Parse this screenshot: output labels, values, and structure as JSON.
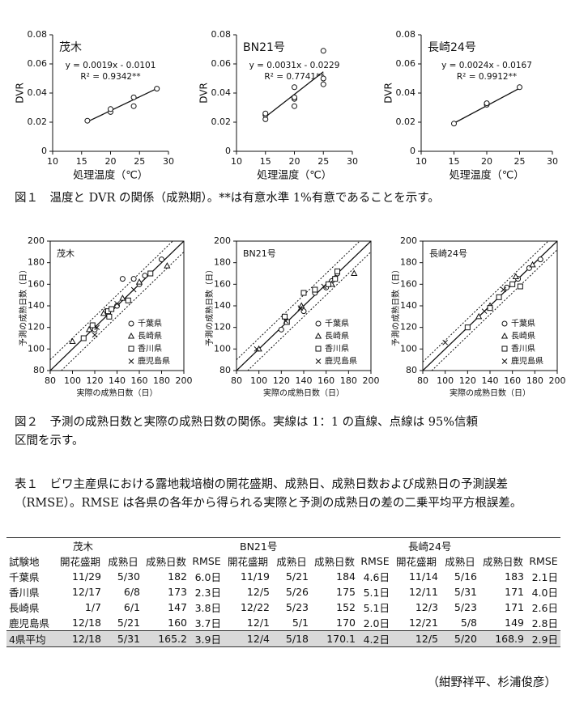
{
  "figure1": {
    "caption": "図１　温度と DVR の関係（成熟期）。**は有意水準 1%有意であることを示す。",
    "charts": [
      {
        "type": "scatter",
        "title": "茂木",
        "xlabel": "処理温度（℃）",
        "ylabel": "DVR",
        "xlim": [
          10,
          30
        ],
        "ylim": [
          0,
          0.08
        ],
        "xticks": [
          10,
          15,
          20,
          25,
          30
        ],
        "yticks": [
          0,
          0.02,
          0.04,
          0.06,
          0.08
        ],
        "series": [
          {
            "marker": "circle",
            "x": [
              16,
              20,
              20,
              24,
              24,
              28
            ],
            "values": [
              0.021,
              0.027,
              0.029,
              0.031,
              0.037,
              0.043
            ]
          }
        ],
        "ref_lines": [
          {
            "x": [
              16,
              28
            ],
            "values": [
              0.0203,
              0.0431
            ],
            "dash": false
          }
        ],
        "annotations": [
          "y = 0.0019x - 0.0101",
          "R² = 0.9342**"
        ]
      },
      {
        "type": "scatter",
        "title": "BN21号",
        "xlabel": "処理温度（℃）",
        "ylabel": "DVR",
        "xlim": [
          10,
          30
        ],
        "ylim": [
          0,
          0.08
        ],
        "xticks": [
          10,
          15,
          20,
          25,
          30
        ],
        "yticks": [
          0,
          0.02,
          0.04,
          0.06,
          0.08
        ],
        "series": [
          {
            "marker": "circle",
            "x": [
              15,
              15,
              15,
              20,
              20,
              20,
              20,
              25,
              25,
              25
            ],
            "values": [
              0.022,
              0.025,
              0.026,
              0.031,
              0.036,
              0.037,
              0.044,
              0.046,
              0.05,
              0.069
            ]
          }
        ],
        "ref_lines": [
          {
            "x": [
              15,
              25
            ],
            "values": [
              0.0236,
              0.0546
            ],
            "dash": false
          }
        ],
        "annotations": [
          "y = 0.0031x - 0.0229",
          "R² = 0.7741**"
        ]
      },
      {
        "type": "scatter",
        "title": "長崎24号",
        "xlabel": "処理温度（℃）",
        "ylabel": "DVR",
        "xlim": [
          10,
          30
        ],
        "ylim": [
          0,
          0.08
        ],
        "xticks": [
          10,
          15,
          20,
          25,
          30
        ],
        "yticks": [
          0,
          0.02,
          0.04,
          0.06,
          0.08
        ],
        "series": [
          {
            "marker": "circle",
            "x": [
              15,
              20,
              20,
              25
            ],
            "values": [
              0.019,
              0.032,
              0.033,
              0.044
            ]
          }
        ],
        "ref_lines": [
          {
            "x": [
              15,
              25
            ],
            "values": [
              0.0193,
              0.0433
            ],
            "dash": false
          }
        ],
        "annotations": [
          "y = 0.0024x - 0.0167",
          "R² = 0.9912**"
        ]
      }
    ]
  },
  "figure2": {
    "caption": {
      "lines": [
        "図２　予測の成熟日数と実際の成熟日数の関係。実線は 1：1 の直線、点線は 95%信頼",
        "区間を示す。"
      ]
    },
    "charts": [
      {
        "type": "scatter",
        "title": "茂木",
        "xlabel": "実際の成熟日数（日）",
        "ylabel": "予測の成熟日数（日）",
        "xlim": [
          80,
          200
        ],
        "ylim": [
          80,
          200
        ],
        "xticks": [
          80,
          100,
          120,
          140,
          160,
          180,
          200
        ],
        "yticks": [
          80,
          100,
          120,
          140,
          160,
          180,
          200
        ],
        "legend": "lower right",
        "series": [
          {
            "name": "千葉県",
            "marker": "circle",
            "x": [
              145,
              155,
              160,
              165,
              180,
              120,
              130,
              140
            ],
            "values": [
              165,
              165,
              160,
              168,
              183,
              118,
              135,
              140
            ]
          },
          {
            "name": "長崎県",
            "marker": "triangle",
            "x": [
              100,
              115,
              145,
              160,
              185,
              128
            ],
            "values": [
              107,
              118,
              147,
              162,
              177,
              133
            ]
          },
          {
            "name": "香川県",
            "marker": "square",
            "x": [
              110,
              118,
              132,
              135,
              133,
              150,
              170
            ],
            "values": [
              110,
              122,
              135,
              137,
              130,
              145,
              170
            ]
          },
          {
            "name": "鹿児島県",
            "marker": "cross",
            "x": [
              120,
              122,
              140,
              155
            ],
            "values": [
              113,
              120,
              142,
              155
            ]
          }
        ],
        "ref_lines": [
          {
            "x": [
              80,
              200
            ],
            "values": [
              80,
              200
            ],
            "dash": false
          },
          {
            "x": [
              80,
              190
            ],
            "values": [
              90,
              200
            ],
            "dash": true
          },
          {
            "x": [
              90,
              200
            ],
            "values": [
              80,
              190
            ],
            "dash": true
          }
        ]
      },
      {
        "type": "scatter",
        "title": "BN21号",
        "xlabel": "実際の成熟日数（日）",
        "ylabel": "予測の成熟日数（日）",
        "xlim": [
          80,
          200
        ],
        "ylim": [
          80,
          200
        ],
        "xticks": [
          80,
          100,
          120,
          140,
          160,
          180,
          200
        ],
        "yticks": [
          80,
          100,
          120,
          140,
          160,
          180,
          200
        ],
        "legend": "lower right",
        "series": [
          {
            "name": "千葉県",
            "marker": "circle",
            "x": [
              140,
              150,
              165,
              170,
              160,
              120
            ],
            "values": [
              135,
              152,
              163,
              170,
              157,
              118
            ]
          },
          {
            "name": "長崎県",
            "marker": "triangle",
            "x": [
              100,
              138,
              185,
              165
            ],
            "values": [
              100,
              140,
              170,
              160
            ]
          },
          {
            "name": "香川県",
            "marker": "square",
            "x": [
              123,
              125,
              140,
              150,
              162,
              168,
              170
            ],
            "values": [
              130,
              125,
              152,
              155,
              160,
              165,
              172
            ]
          },
          {
            "name": "鹿児島県",
            "marker": "cross",
            "x": [
              98,
              124,
              137,
              158
            ],
            "values": [
              100,
              126,
              138,
              158
            ]
          }
        ],
        "ref_lines": [
          {
            "x": [
              80,
              200
            ],
            "values": [
              80,
              200
            ],
            "dash": false
          },
          {
            "x": [
              80,
              190
            ],
            "values": [
              90,
              200
            ],
            "dash": true
          },
          {
            "x": [
              90,
              200
            ],
            "values": [
              80,
              190
            ],
            "dash": true
          }
        ]
      },
      {
        "type": "scatter",
        "title": "長崎24号",
        "xlabel": "実際の成熟日数（日）",
        "ylabel": "予測の成熟日数（日）",
        "xlim": [
          80,
          200
        ],
        "ylim": [
          80,
          200
        ],
        "xticks": [
          80,
          100,
          120,
          140,
          160,
          180,
          200
        ],
        "yticks": [
          80,
          100,
          120,
          140,
          160,
          180,
          200
        ],
        "legend": "lower right",
        "series": [
          {
            "name": "千葉県",
            "marker": "circle",
            "x": [
              155,
              175,
              185,
              165
            ],
            "values": [
              157,
              175,
              183,
              165
            ]
          },
          {
            "name": "長崎県",
            "marker": "triangle",
            "x": [
              130,
              163,
              140,
              178
            ],
            "values": [
              130,
              167,
              140,
              178
            ]
          },
          {
            "name": "香川県",
            "marker": "square",
            "x": [
              120,
              140,
              148,
              160,
              167
            ],
            "values": [
              120,
              138,
              148,
              160,
              158
            ]
          },
          {
            "name": "鹿児島県",
            "marker": "cross",
            "x": [
              100,
              135,
              152
            ],
            "values": [
              106,
              135,
              155
            ]
          }
        ],
        "ref_lines": [
          {
            "x": [
              80,
              200
            ],
            "values": [
              80,
              200
            ],
            "dash": false
          },
          {
            "x": [
              80,
              192
            ],
            "values": [
              88,
              200
            ],
            "dash": true
          },
          {
            "x": [
              88,
              200
            ],
            "values": [
              80,
              192
            ],
            "dash": true
          }
        ]
      }
    ]
  },
  "table1": {
    "caption": {
      "lines": [
        "表１　ビワ主産県における露地栽培樹の開花盛期、成熟日、成熟日数および成熟日の予測誤差",
        "（RMSE）。RMSE は各県の各年から得られる実際と予測の成熟日の差の二乗平均平方根誤差。"
      ]
    },
    "groups": [
      "茂木",
      "BN21号",
      "長崎24号"
    ],
    "header": [
      "試験地",
      "開花盛期",
      "成熟日",
      "成熟日数",
      "RMSE",
      "開花盛期",
      "成熟日",
      "成熟日数",
      "RMSE",
      "開花盛期",
      "成熟日",
      "成熟日数",
      "RMSE"
    ],
    "rows": [
      [
        "千葉県",
        "11/29",
        "5/30",
        "182",
        "6.0日",
        "11/19",
        "5/21",
        "184",
        "4.6日",
        "11/14",
        "5/16",
        "183",
        "2.1日"
      ],
      [
        "香川県",
        "12/17",
        "6/8",
        "173",
        "2.3日",
        "12/5",
        "5/26",
        "175",
        "5.1日",
        "12/11",
        "5/31",
        "171",
        "4.0日"
      ],
      [
        "長崎県",
        "1/7",
        "6/1",
        "147",
        "3.8日",
        "12/22",
        "5/23",
        "152",
        "5.1日",
        "12/3",
        "5/23",
        "171",
        "2.6日"
      ],
      [
        "鹿児島県",
        "12/18",
        "5/21",
        "160",
        "3.7日",
        "12/1",
        "5/1",
        "170",
        "2.0日",
        "12/21",
        "5/8",
        "149",
        "2.8日"
      ],
      [
        "4県平均",
        "12/18",
        "5/31",
        "165.2",
        "3.9日",
        "12/4",
        "5/18",
        "170.1",
        "4.2日",
        "12/5",
        "5/20",
        "168.9",
        "2.9日"
      ]
    ]
  },
  "author": "（紺野祥平、杉浦俊彦）"
}
